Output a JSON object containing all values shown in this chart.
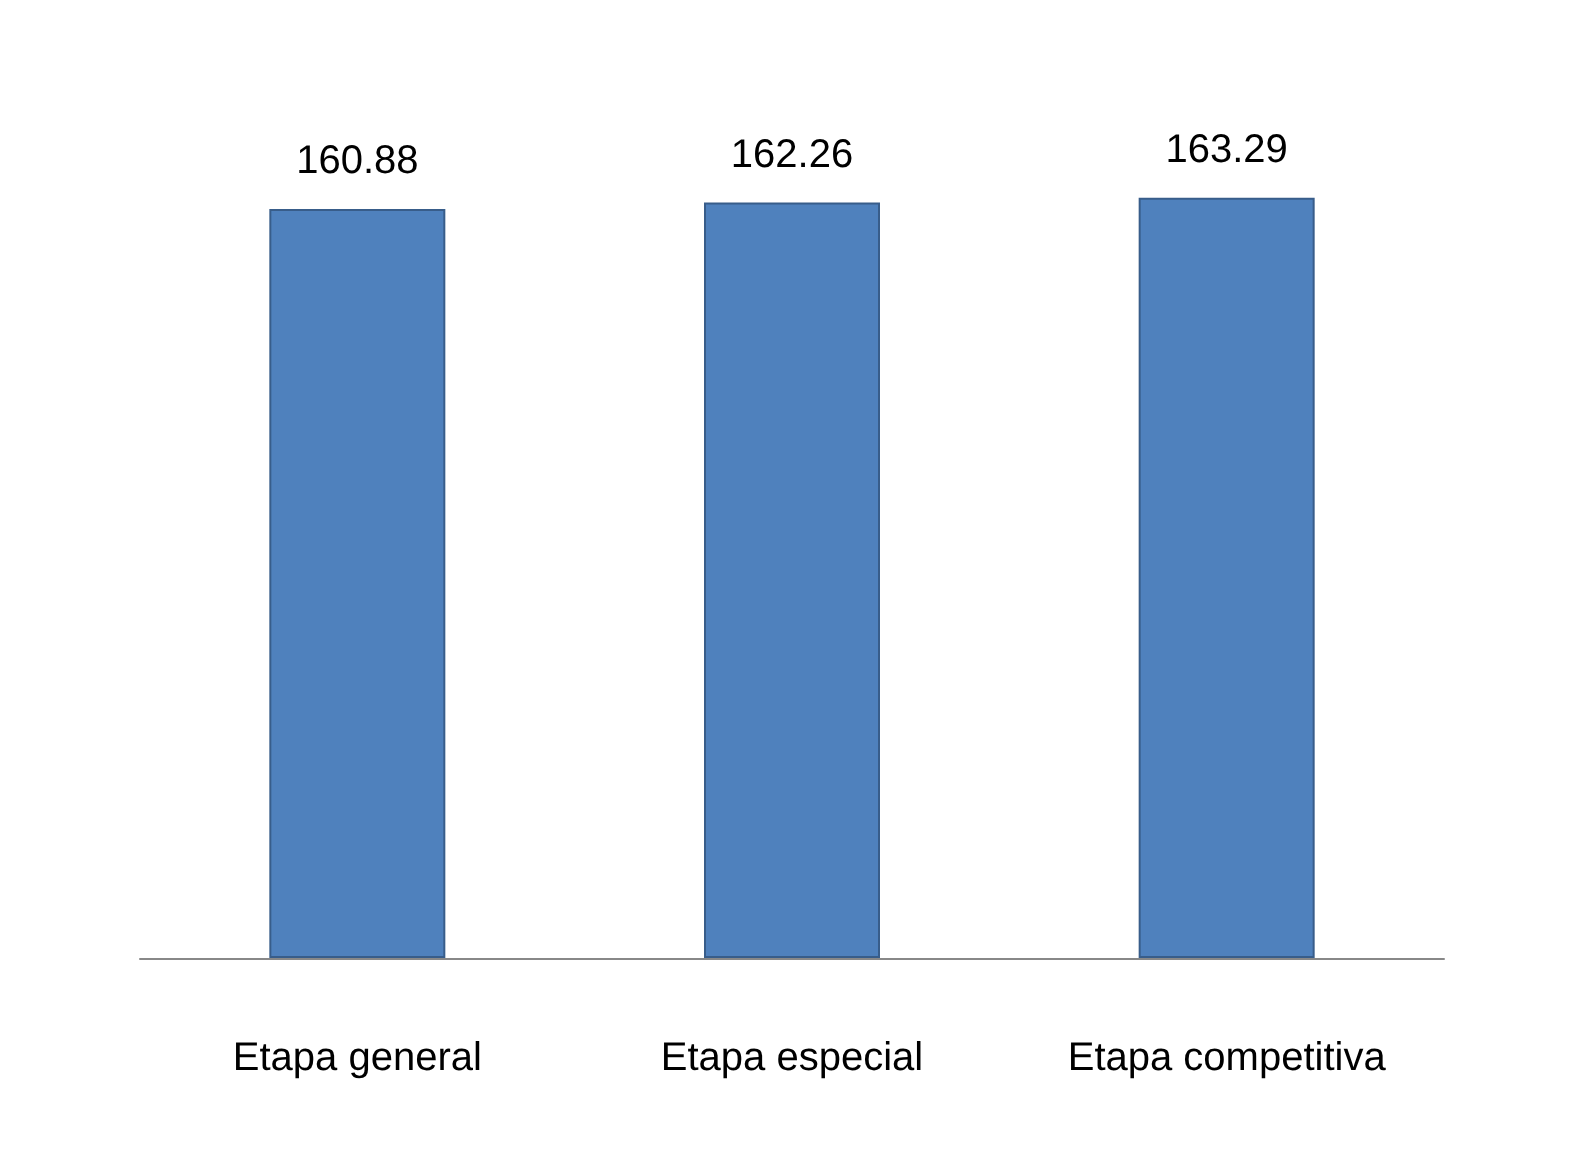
{
  "chart_data": {
    "type": "bar",
    "categories": [
      "Etapa general",
      "Etapa especial",
      "Etapa competitiva"
    ],
    "values": [
      160.88,
      162.26,
      163.29
    ],
    "color": "#4f81bd",
    "tick_labels": "x",
    "data_labels": true
  }
}
